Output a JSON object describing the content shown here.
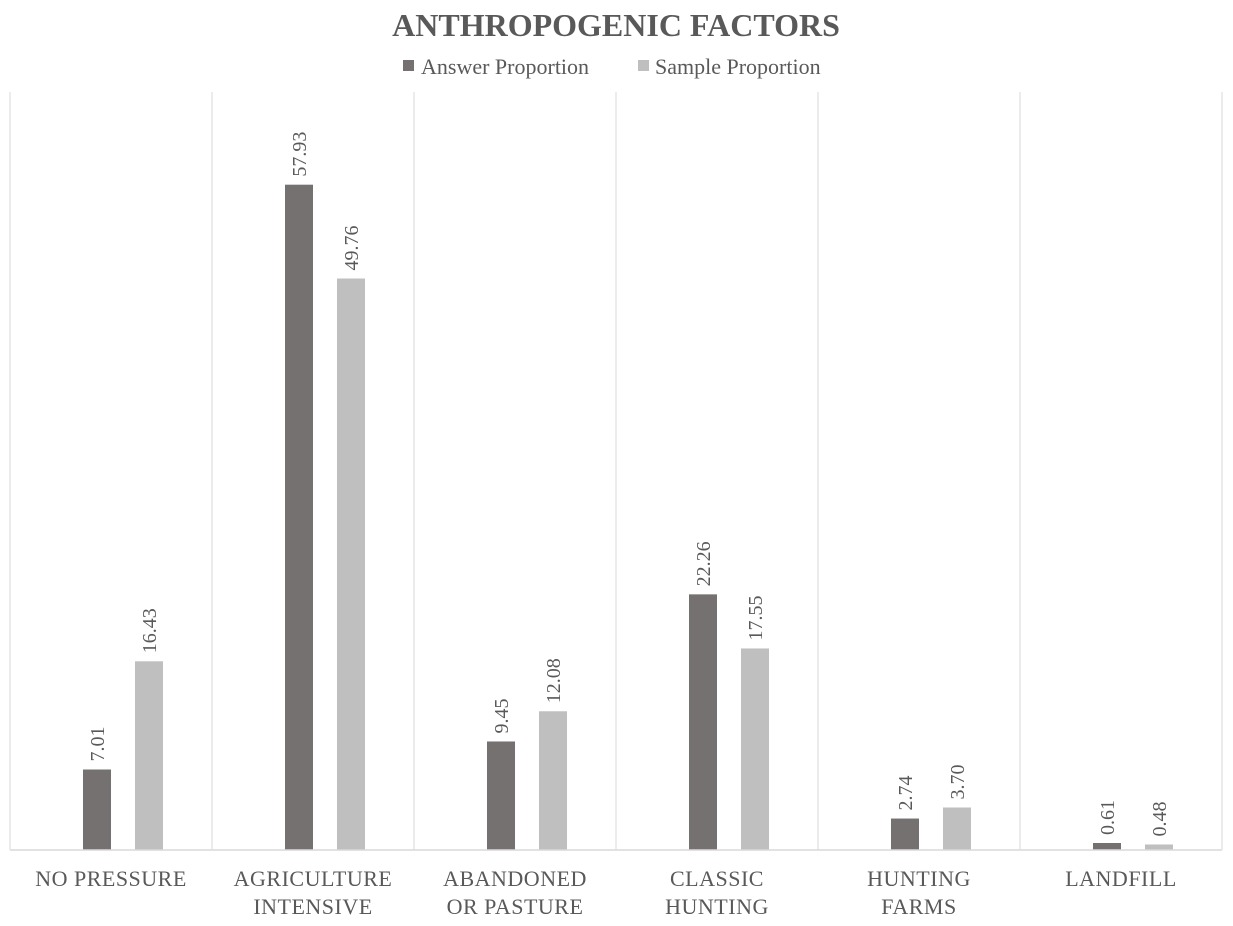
{
  "chart_data": {
    "type": "bar",
    "title": "ANTHROPOGENIC FACTORS",
    "categories": [
      [
        "NO PRESSURE"
      ],
      [
        "AGRICULTURE",
        "INTENSIVE"
      ],
      [
        "ABANDONED",
        "OR PASTURE"
      ],
      [
        "CLASSIC",
        "HUNTING"
      ],
      [
        "HUNTING",
        "FARMS"
      ],
      [
        "LANDFILL"
      ]
    ],
    "series": [
      {
        "name": "Answer Proportion",
        "color": "#767171",
        "values": [
          7.01,
          57.93,
          9.45,
          22.26,
          2.74,
          0.61
        ],
        "labels": [
          "7.01",
          "57.93",
          "9.45",
          "22.26",
          "2.74",
          "0.61"
        ]
      },
      {
        "name": "Sample Proportion",
        "color": "#bfbfbf",
        "values": [
          16.43,
          49.76,
          12.08,
          17.55,
          3.7,
          0.48
        ],
        "labels": [
          "16.43",
          "49.76",
          "12.08",
          "17.55",
          "3.70",
          "0.48"
        ]
      }
    ],
    "ylim": [
      0,
      66
    ],
    "legend_position": "top",
    "grid": "vertical-category-separators",
    "data_labels": "rotated-above-bars"
  }
}
